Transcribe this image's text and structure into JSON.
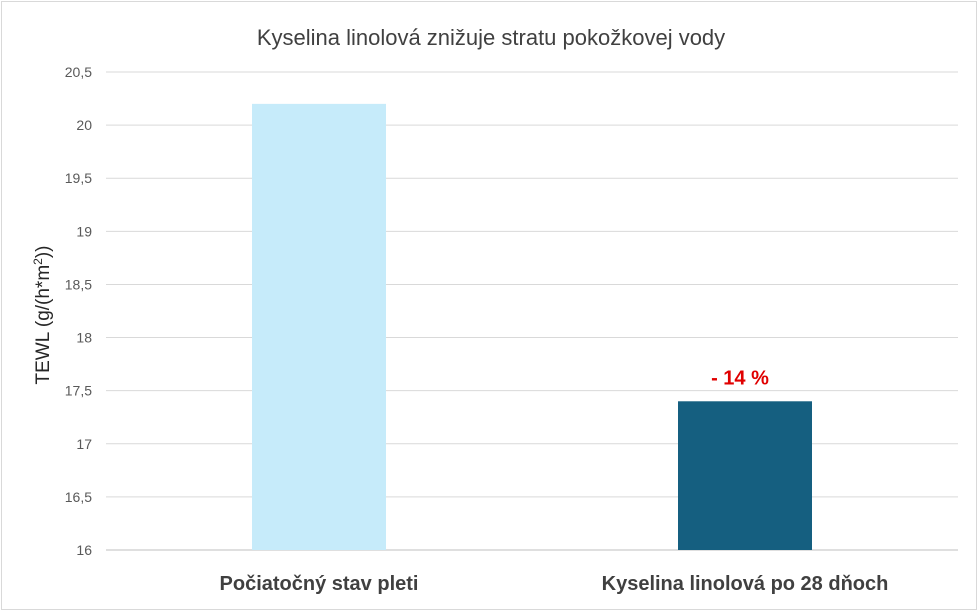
{
  "chart_data": {
    "type": "bar",
    "title": "Kyselina linolová znižuje stratu pokožkovej vody",
    "ylabel_main": "TEWL (g/(h*m",
    "ylabel_sup": "2",
    "ylabel_close": "))",
    "categories": [
      "Počiatočný stav pleti",
      "Kyselina linolová po 28 dňoch"
    ],
    "values": [
      20.2,
      17.4
    ],
    "bar_colors": [
      "#c6ebfa",
      "#155f80"
    ],
    "annotation": "- 14 %",
    "annotation_color": "#e00000",
    "ylim": [
      16,
      20.5
    ],
    "yticks": [
      "16",
      "16,5",
      "17",
      "17,5",
      "18",
      "18,5",
      "19",
      "19,5",
      "20",
      "20,5"
    ],
    "grid": true
  }
}
